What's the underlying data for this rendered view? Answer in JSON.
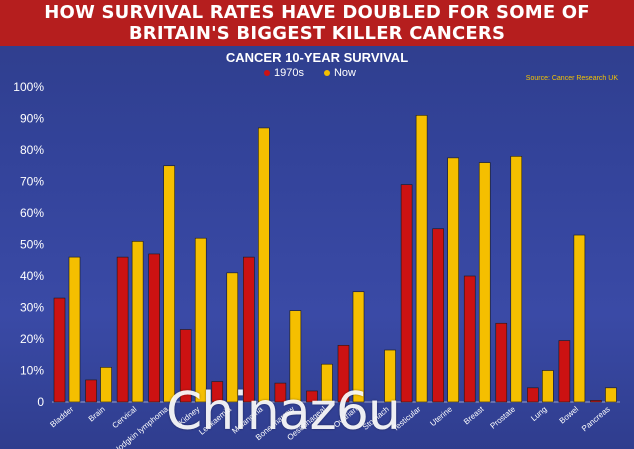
{
  "header": {
    "title_line1": "HOW SURVIVAL RATES HAVE DOUBLED FOR SOME OF",
    "title_line2": "BRITAIN'S BIGGEST KILLER CANCERS"
  },
  "watermark": "Chinaz6u",
  "colors": {
    "series_1970s": "#cc1212",
    "series_now": "#f5bf00",
    "header_bg": "#b51e1e"
  },
  "chart_data": {
    "type": "bar",
    "title": "CANCER 10-YEAR SURVIVAL",
    "source": "Source: Cancer Research UK",
    "categories": [
      "Bladder",
      "Brain",
      "Cervical",
      "Hodgkin lymphoma",
      "Kidney",
      "Leukaemia",
      "Melanoma",
      "Bone marrow",
      "Oesophageal",
      "Ovarian",
      "Stomach",
      "Testicular",
      "Uterine",
      "Breast",
      "Prostate",
      "Lung",
      "Bowel",
      "Pancreas"
    ],
    "series": [
      {
        "name": "1970s",
        "values": [
          33,
          7,
          46,
          47,
          23,
          6.5,
          46,
          6,
          3.5,
          18,
          0,
          69,
          55,
          40,
          25,
          4.5,
          19.5,
          0.5
        ]
      },
      {
        "name": "Now",
        "values": [
          46,
          11,
          51,
          75,
          52,
          41,
          87,
          29,
          12,
          35,
          16.5,
          91,
          77.5,
          76,
          78,
          10,
          53,
          4.5
        ]
      }
    ],
    "ylim": [
      0,
      100
    ],
    "yticks": [
      "0",
      "10%",
      "20%",
      "30%",
      "40%",
      "50%",
      "60%",
      "70%",
      "80%",
      "90%",
      "100%"
    ],
    "grid": false,
    "legend_position": "top"
  }
}
